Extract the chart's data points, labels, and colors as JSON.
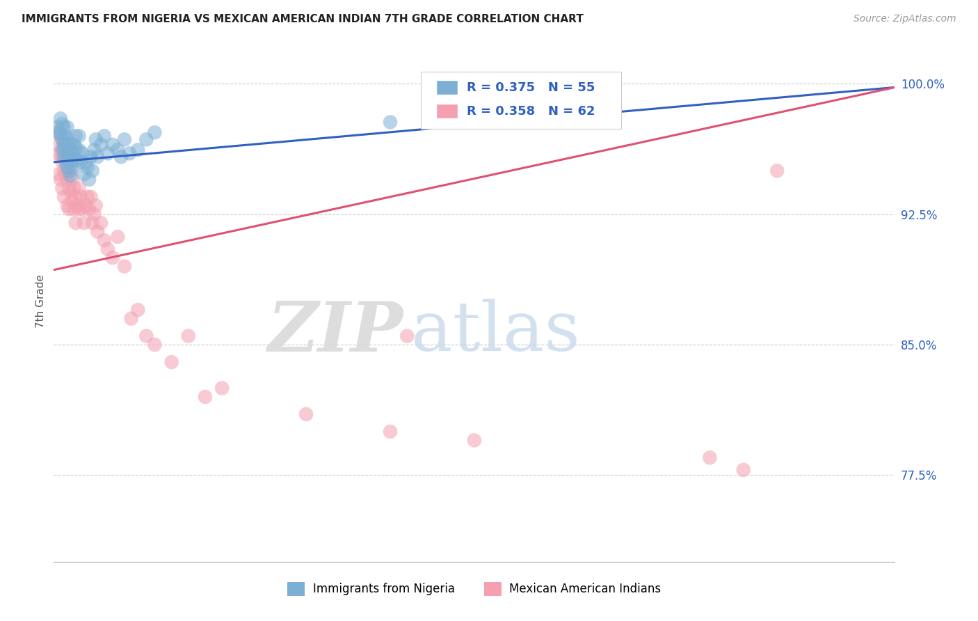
{
  "title": "IMMIGRANTS FROM NIGERIA VS MEXICAN AMERICAN INDIAN 7TH GRADE CORRELATION CHART",
  "source": "Source: ZipAtlas.com",
  "ylabel": "7th Grade",
  "ytick_labels": [
    "77.5%",
    "85.0%",
    "92.5%",
    "100.0%"
  ],
  "ytick_values": [
    0.775,
    0.85,
    0.925,
    1.0
  ],
  "xmin": 0.0,
  "xmax": 0.5,
  "ymin": 0.725,
  "ymax": 1.025,
  "legend1_R": "R = 0.375",
  "legend1_N": "N = 55",
  "legend2_R": "R = 0.358",
  "legend2_N": "N = 62",
  "series1_label": "Immigrants from Nigeria",
  "series2_label": "Mexican American Indians",
  "blue_color": "#7bafd4",
  "pink_color": "#f4a0b0",
  "trendline_blue": "#3060c0",
  "trendline_pink": "#e05070",
  "axis_label_color": "#3060c0",
  "title_color": "#222222",
  "blue_scatter_x": [
    0.002,
    0.003,
    0.004,
    0.004,
    0.005,
    0.005,
    0.005,
    0.006,
    0.006,
    0.006,
    0.007,
    0.007,
    0.007,
    0.008,
    0.008,
    0.008,
    0.008,
    0.009,
    0.009,
    0.009,
    0.01,
    0.01,
    0.01,
    0.011,
    0.011,
    0.012,
    0.012,
    0.013,
    0.013,
    0.014,
    0.015,
    0.015,
    0.016,
    0.017,
    0.018,
    0.019,
    0.02,
    0.021,
    0.022,
    0.023,
    0.024,
    0.025,
    0.026,
    0.028,
    0.03,
    0.032,
    0.035,
    0.038,
    0.04,
    0.042,
    0.045,
    0.05,
    0.055,
    0.06,
    0.2
  ],
  "blue_scatter_y": [
    0.975,
    0.972,
    0.98,
    0.971,
    0.977,
    0.968,
    0.962,
    0.975,
    0.965,
    0.958,
    0.97,
    0.963,
    0.955,
    0.975,
    0.968,
    0.96,
    0.952,
    0.965,
    0.958,
    0.95,
    0.962,
    0.955,
    0.947,
    0.96,
    0.952,
    0.965,
    0.957,
    0.97,
    0.963,
    0.956,
    0.97,
    0.962,
    0.955,
    0.96,
    0.948,
    0.955,
    0.952,
    0.945,
    0.958,
    0.95,
    0.962,
    0.968,
    0.958,
    0.965,
    0.97,
    0.96,
    0.965,
    0.962,
    0.958,
    0.968,
    0.96,
    0.962,
    0.968,
    0.972,
    0.978
  ],
  "pink_scatter_x": [
    0.001,
    0.002,
    0.003,
    0.003,
    0.004,
    0.004,
    0.005,
    0.005,
    0.005,
    0.006,
    0.006,
    0.006,
    0.007,
    0.007,
    0.008,
    0.008,
    0.008,
    0.009,
    0.009,
    0.01,
    0.01,
    0.011,
    0.011,
    0.012,
    0.012,
    0.013,
    0.013,
    0.014,
    0.015,
    0.015,
    0.016,
    0.017,
    0.018,
    0.019,
    0.02,
    0.021,
    0.022,
    0.023,
    0.024,
    0.025,
    0.026,
    0.028,
    0.03,
    0.032,
    0.035,
    0.038,
    0.042,
    0.046,
    0.05,
    0.055,
    0.06,
    0.07,
    0.08,
    0.09,
    0.1,
    0.15,
    0.2,
    0.21,
    0.25,
    0.39,
    0.41,
    0.43
  ],
  "pink_scatter_y": [
    0.972,
    0.965,
    0.96,
    0.948,
    0.958,
    0.945,
    0.968,
    0.955,
    0.94,
    0.962,
    0.95,
    0.935,
    0.96,
    0.948,
    0.958,
    0.945,
    0.93,
    0.94,
    0.928,
    0.95,
    0.938,
    0.945,
    0.933,
    0.94,
    0.928,
    0.935,
    0.92,
    0.93,
    0.94,
    0.928,
    0.935,
    0.928,
    0.92,
    0.93,
    0.935,
    0.928,
    0.935,
    0.92,
    0.925,
    0.93,
    0.915,
    0.92,
    0.91,
    0.905,
    0.9,
    0.912,
    0.895,
    0.865,
    0.87,
    0.855,
    0.85,
    0.84,
    0.855,
    0.82,
    0.825,
    0.81,
    0.8,
    0.855,
    0.795,
    0.785,
    0.778,
    0.95
  ],
  "blue_trendline_x": [
    0.0,
    0.5
  ],
  "blue_trendline_y": [
    0.955,
    0.998
  ],
  "pink_trendline_x": [
    0.0,
    0.5
  ],
  "pink_trendline_y": [
    0.893,
    0.998
  ],
  "figsize": [
    14.06,
    8.92
  ],
  "dpi": 100
}
